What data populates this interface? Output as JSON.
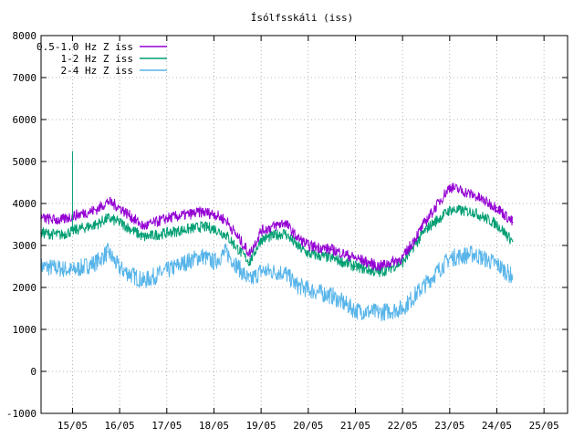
{
  "chart_data": {
    "type": "line",
    "title": "Ísólfsskáli (iss)",
    "xlabel": "",
    "ylabel": "",
    "xlim_days": [
      "2024-05-14T08:00",
      "2024-05-25T12:00"
    ],
    "ylim": [
      -1000,
      8000
    ],
    "y_ticks": [
      -1000,
      0,
      1000,
      2000,
      3000,
      4000,
      5000,
      6000,
      7000,
      8000
    ],
    "x_ticks": [
      {
        "label": "15/05",
        "date": "2024-05-15"
      },
      {
        "label": "16/05",
        "date": "2024-05-16"
      },
      {
        "label": "17/05",
        "date": "2024-05-17"
      },
      {
        "label": "18/05",
        "date": "2024-05-18"
      },
      {
        "label": "19/05",
        "date": "2024-05-19"
      },
      {
        "label": "20/05",
        "date": "2024-05-20"
      },
      {
        "label": "21/05",
        "date": "2024-05-21"
      },
      {
        "label": "22/05",
        "date": "2024-05-22"
      },
      {
        "label": "23/05",
        "date": "2024-05-23"
      },
      {
        "label": "24/05",
        "date": "2024-05-24"
      },
      {
        "label": "25/05",
        "date": "2024-05-25"
      }
    ],
    "grid": true,
    "legend_position": "top-left",
    "x": [
      "2024-05-14T08:00",
      "2024-05-14T18:00",
      "2024-05-15T00:00",
      "2024-05-15T12:00",
      "2024-05-15T18:00",
      "2024-05-16T00:00",
      "2024-05-16T12:00",
      "2024-05-17T00:00",
      "2024-05-17T12:00",
      "2024-05-17T18:00",
      "2024-05-18T00:00",
      "2024-05-18T06:00",
      "2024-05-18T18:00",
      "2024-05-19T00:00",
      "2024-05-19T12:00",
      "2024-05-19T18:00",
      "2024-05-20T00:00",
      "2024-05-20T12:00",
      "2024-05-21T00:00",
      "2024-05-21T12:00",
      "2024-05-22T00:00",
      "2024-05-22T12:00",
      "2024-05-23T00:00",
      "2024-05-23T12:00",
      "2024-05-24T00:00",
      "2024-05-24T08:00"
    ],
    "series": [
      {
        "name": "0.5-1.0 Hz Z iss",
        "color": "#9400d3",
        "values": [
          3650,
          3600,
          3700,
          3850,
          4050,
          3900,
          3450,
          3650,
          3750,
          3800,
          3750,
          3600,
          2800,
          3350,
          3550,
          3200,
          3000,
          2900,
          2700,
          2500,
          2700,
          3600,
          4400,
          4200,
          3900,
          3550
        ]
      },
      {
        "name": "1-2 Hz Z iss",
        "color": "#009e73",
        "values": [
          3300,
          3250,
          3350,
          3500,
          3650,
          3550,
          3200,
          3300,
          3400,
          3450,
          3400,
          3250,
          2600,
          3150,
          3300,
          3000,
          2800,
          2700,
          2500,
          2350,
          2600,
          3400,
          3850,
          3800,
          3500,
          3100
        ]
      },
      {
        "name": "2-4 Hz Z iss",
        "color": "#56b4e9",
        "values": [
          2500,
          2450,
          2400,
          2600,
          2850,
          2450,
          2150,
          2400,
          2650,
          2750,
          2600,
          2850,
          2150,
          2400,
          2350,
          2050,
          1950,
          1800,
          1450,
          1400,
          1500,
          2100,
          2700,
          2800,
          2550,
          2250
        ]
      }
    ],
    "annotations": {
      "spike_peak": 5250,
      "spike_date": "2024-05-15T00:00"
    }
  }
}
